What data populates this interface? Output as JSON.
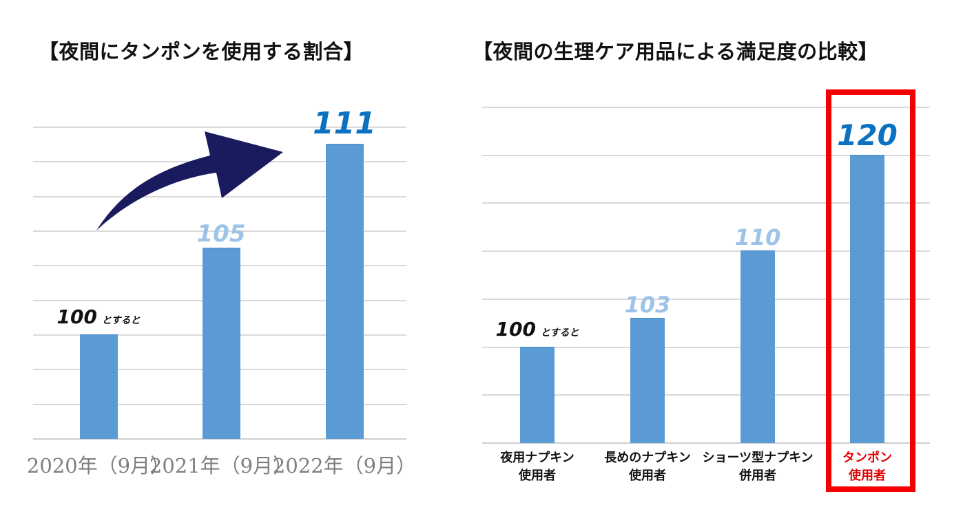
{
  "colors": {
    "background": "#FFFFFF",
    "bar_blue": "#5B9BD5",
    "value_dark_blue": "#0B72C1",
    "value_light_blue": "#9DC3E6",
    "label_black": "#111111",
    "axis_gray": "#7F7F7F",
    "gridline_gray": "#D9D9D9",
    "arrow_navy": "#1A1A5E",
    "highlight_red": "#F40000",
    "category_red": "#E60000"
  },
  "chart_data": [
    {
      "type": "bar",
      "title": "【夜間にタンポンを使用する割合】",
      "categories": [
        "2020年（9月）",
        "2021年（9月）",
        "2022年（9月）"
      ],
      "values": [
        100,
        105,
        111
      ],
      "value_labels": [
        {
          "text": "100",
          "suffix": "とすると",
          "style": "black"
        },
        {
          "text": "105",
          "suffix": "",
          "style": "light"
        },
        {
          "text": "111",
          "suffix": "",
          "style": "dark"
        }
      ],
      "ylim": [
        94,
        112
      ],
      "grid_step": 2,
      "grid": true,
      "legend": "none",
      "annotation": "curved-up-right-arrow"
    },
    {
      "type": "bar",
      "title": "【夜間の生理ケア用品による満足度の比較】",
      "categories": [
        {
          "lines": [
            "夜用ナプキン",
            "使用者"
          ],
          "color": "black"
        },
        {
          "lines": [
            "長めのナプキン",
            "使用者"
          ],
          "color": "black"
        },
        {
          "lines": [
            "ショーツ型ナプキン",
            "併用者"
          ],
          "color": "black"
        },
        {
          "lines": [
            "タンポン",
            "使用者"
          ],
          "color": "red"
        }
      ],
      "values": [
        100,
        103,
        110,
        120
      ],
      "value_labels": [
        {
          "text": "100",
          "suffix": "とすると",
          "style": "black"
        },
        {
          "text": "103",
          "suffix": "",
          "style": "light"
        },
        {
          "text": "110",
          "suffix": "",
          "style": "light"
        },
        {
          "text": "120",
          "suffix": "",
          "style": "dark"
        }
      ],
      "ylim": [
        90,
        125
      ],
      "grid_step": 5,
      "grid": true,
      "legend": "none",
      "highlight_index": 3,
      "highlight": "red-box-around-tampon-bar"
    }
  ]
}
